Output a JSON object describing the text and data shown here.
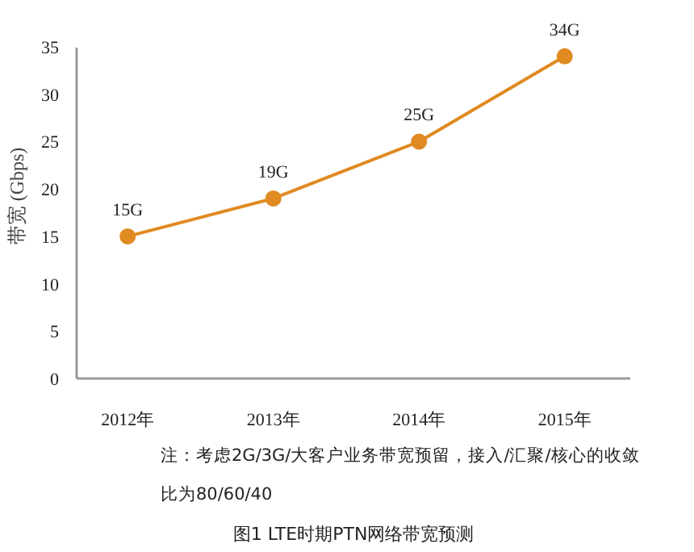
{
  "chart_data": {
    "type": "line",
    "title": "图1 LTE时期PTN网络带宽预测",
    "ylabel": "带宽 (Gbps)",
    "categories": [
      "2012年",
      "2013年",
      "2014年",
      "2015年"
    ],
    "values": [
      15,
      19,
      25,
      34
    ],
    "value_labels": [
      "15G",
      "19G",
      "25G",
      "34G"
    ],
    "color": "#e08a22",
    "marker": "circle",
    "line_style": "solid",
    "ylim": [
      0,
      35
    ],
    "yticks": [
      0,
      5,
      10,
      15,
      20,
      25,
      30,
      35
    ],
    "grid": false,
    "annotations": [
      "注：考虑2G/3G/大客户业务带宽预留，接入/汇聚/核心的收敛比为80/60/40"
    ]
  }
}
